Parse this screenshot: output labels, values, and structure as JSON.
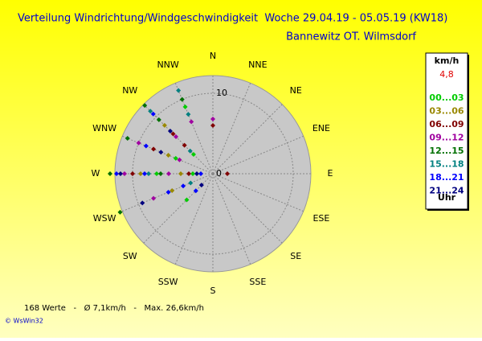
{
  "chart_data": {
    "type": "polar-scatter",
    "title": "Verteilung Windrichtung/Windgeschwindigkeit  Woche 29.04.19 - 05.05.19 (KW18)",
    "subtitle": "Bannewitz OT. Wilmsdorf",
    "directions": [
      "N",
      "NNE",
      "NE",
      "ENE",
      "E",
      "ESE",
      "SE",
      "SSE",
      "S",
      "SSW",
      "SW",
      "WSW",
      "W",
      "WNW",
      "NW",
      "NNW"
    ],
    "rlim": [
      0,
      12.2
    ],
    "rticks": [
      0,
      10
    ],
    "legend_title": "km/h",
    "legend_value": "4,8",
    "legend_footer": "Uhr",
    "series": [
      {
        "name": "00...03",
        "color": "#00cc00",
        "x": [
          270,
          270,
          225,
          315,
          337.5,
          292.5
        ],
        "values": [
          2.5,
          7,
          4.6,
          3.4,
          9,
          5
        ]
      },
      {
        "name": "03...06",
        "color": "#998800",
        "x": [
          270,
          270,
          292.5,
          315,
          247.5
        ],
        "values": [
          4,
          9,
          6,
          8.5,
          5.5
        ]
      },
      {
        "name": "06...09",
        "color": "#800000",
        "x": [
          270,
          270,
          315,
          315,
          292.5,
          90,
          0
        ],
        "values": [
          3,
          10,
          5,
          7,
          8,
          1.8,
          6
        ]
      },
      {
        "name": "09...12",
        "color": "#a000a0",
        "x": [
          270,
          270,
          292.5,
          292.5,
          315,
          0,
          247.5,
          337.5
        ],
        "values": [
          5.5,
          11,
          10,
          4.5,
          6.5,
          6.8,
          8,
          7
        ]
      },
      {
        "name": "12...15",
        "color": "#007000",
        "x": [
          270,
          270,
          315,
          315,
          247.5,
          292.5,
          337.5
        ],
        "values": [
          6.5,
          12.8,
          9.5,
          12,
          12.5,
          11.5,
          10
        ]
      },
      {
        "name": "15...18",
        "color": "#008080",
        "x": [
          270,
          315,
          315,
          337.5,
          337.5,
          247.5
        ],
        "values": [
          8,
          4,
          11,
          8,
          11.2,
          3
        ]
      },
      {
        "name": "18...21",
        "color": "#0000ff",
        "x": [
          270,
          270,
          247.5,
          225,
          292.5,
          315,
          270,
          247.5
        ],
        "values": [
          1.5,
          8.5,
          6,
          3,
          9,
          10.5,
          12,
          4
        ]
      },
      {
        "name": "21...24",
        "color": "#000080",
        "x": [
          270,
          270,
          225,
          247.5,
          315,
          292.5
        ],
        "values": [
          2,
          11.5,
          2,
          9.5,
          7.5,
          7
        ]
      }
    ],
    "footer": "168 Werte   -   Ø 7,1km/h   -   Max. 26,6km/h",
    "credit": "© WsWin32"
  }
}
